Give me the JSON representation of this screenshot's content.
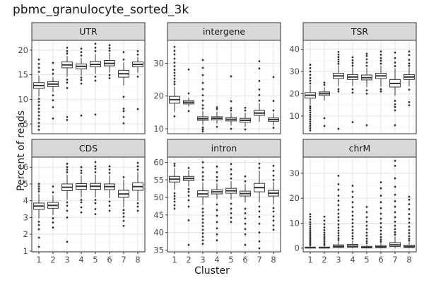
{
  "title": "pbmc_granulocyte_sorted_3k",
  "ylabel": "Percent of reads",
  "xlabel": "Cluster",
  "chart_data": {
    "type": "boxplot",
    "title": "pbmc_granulocyte_sorted_3k",
    "xlabel": "Cluster",
    "ylabel": "Percent of reads",
    "categories": [
      "1",
      "2",
      "3",
      "4",
      "5",
      "6",
      "7",
      "8"
    ],
    "panels": [
      {
        "name": "UTR",
        "ylim": [
          3,
          22
        ],
        "yticks": [
          5,
          10,
          15,
          20
        ],
        "boxes": [
          {
            "q1": 12.2,
            "median": 12.8,
            "q3": 13.4,
            "whisker_low": 10.6,
            "whisker_high": 14.8,
            "outliers": [
              3.8,
              4.5,
              5.2,
              6,
              6.7,
              7.4,
              8.1,
              8.8,
              9.5,
              10.1,
              15.6,
              16.4,
              17.2,
              18.1
            ]
          },
          {
            "q1": 12.6,
            "median": 13.1,
            "q3": 13.6,
            "whisker_low": 11.5,
            "whisker_high": 14.5,
            "outliers": [
              6.1,
              8.4,
              9.8,
              10.8,
              15.2,
              16,
              17.4
            ]
          },
          {
            "q1": 16.4,
            "median": 17.0,
            "q3": 17.6,
            "whisker_low": 14.6,
            "whisker_high": 18.8,
            "outliers": [
              5.8,
              6.4,
              12.3,
              13.4,
              14,
              19.3,
              19.8,
              20.5
            ]
          },
          {
            "q1": 16.2,
            "median": 16.7,
            "q3": 17.2,
            "whisker_low": 14.8,
            "whisker_high": 18.4,
            "outliers": [
              6.7,
              13.2,
              13.9,
              14.4,
              18.9,
              19.6,
              20.3
            ]
          },
          {
            "q1": 16.6,
            "median": 17.1,
            "q3": 17.7,
            "whisker_low": 15.2,
            "whisker_high": 19.2,
            "outliers": [
              6.9,
              13.8,
              14.6,
              19.8,
              20.5,
              21.3
            ]
          },
          {
            "q1": 16.8,
            "median": 17.3,
            "q3": 17.9,
            "whisker_low": 15.4,
            "whisker_high": 19.4,
            "outliers": [
              14.3,
              14.9,
              19.9,
              20.4,
              21
            ]
          },
          {
            "q1": 14.5,
            "median": 15.2,
            "q3": 15.9,
            "whisker_low": 12.8,
            "whisker_high": 17.5,
            "outliers": [
              5.1,
              6.4,
              7.6,
              8.1,
              10.5,
              18.1,
              19.6
            ]
          },
          {
            "q1": 16.6,
            "median": 17.1,
            "q3": 17.6,
            "whisker_low": 15.4,
            "whisker_high": 18.6,
            "outliers": [
              8,
              14.6,
              19.1,
              19.8
            ]
          }
        ]
      },
      {
        "name": "intergene",
        "ylim": [
          8.5,
          37
        ],
        "yticks": [
          10,
          20,
          30
        ],
        "boxes": [
          {
            "q1": 17.8,
            "median": 18.9,
            "q3": 19.9,
            "whisker_low": 15.2,
            "whisker_high": 22.8,
            "outliers": [
              13.8,
              23.6,
              24.4,
              25.3,
              26.2,
              27.1,
              28,
              29.1,
              30.2,
              31.4,
              32.7,
              33.8,
              35
            ]
          },
          {
            "q1": 17.6,
            "median": 18.1,
            "q3": 18.6,
            "whisker_low": 16.8,
            "whisker_high": 19.5,
            "outliers": [
              15.4,
              20.8,
              28.1
            ]
          },
          {
            "q1": 12.6,
            "median": 13.1,
            "q3": 13.7,
            "whisker_low": 11.2,
            "whisker_high": 15.4,
            "outliers": [
              9.2,
              9.8,
              10.4,
              16.2,
              17.2,
              18.6,
              20.2,
              22.1,
              24,
              26.4,
              28.6,
              31
            ]
          },
          {
            "q1": 12.7,
            "median": 13.2,
            "q3": 13.7,
            "whisker_low": 11.5,
            "whisker_high": 15.2,
            "outliers": [
              10.6,
              16,
              16.6
            ]
          },
          {
            "q1": 12.4,
            "median": 12.9,
            "q3": 13.4,
            "whisker_low": 11,
            "whisker_high": 14.9,
            "outliers": [
              10,
              15.6,
              16.3,
              18.4,
              26
            ]
          },
          {
            "q1": 12.0,
            "median": 12.6,
            "q3": 13.2,
            "whisker_low": 10.6,
            "whisker_high": 14.8,
            "outliers": [
              9.8,
              15.6,
              16.4
            ]
          },
          {
            "q1": 14.1,
            "median": 14.8,
            "q3": 15.6,
            "whisker_low": 12.2,
            "whisker_high": 17.8,
            "outliers": [
              18.6,
              20.3,
              22,
              24.6,
              28.4,
              30.6
            ]
          },
          {
            "q1": 12.3,
            "median": 12.8,
            "q3": 13.3,
            "whisker_low": 11,
            "whisker_high": 14.7,
            "outliers": [
              10.3,
              15.6,
              18.5,
              25.8
            ]
          }
        ]
      },
      {
        "name": "TSR",
        "ylim": [
          2,
          44
        ],
        "yticks": [
          10,
          20,
          30,
          40
        ],
        "boxes": [
          {
            "q1": 18.0,
            "median": 19.3,
            "q3": 20.5,
            "whisker_low": 15,
            "whisker_high": 23.8,
            "outliers": [
              3.5,
              4.5,
              5.5,
              6.5,
              7.5,
              8.5,
              9.5,
              10.5,
              11.5,
              12.5,
              13.5,
              14.3,
              24.6,
              25.8,
              27,
              28.5,
              30,
              31.5,
              33
            ]
          },
          {
            "q1": 19.2,
            "median": 20.0,
            "q3": 20.8,
            "whisker_low": 17,
            "whisker_high": 22.8,
            "outliers": [
              5.5,
              9,
              24,
              25
            ]
          },
          {
            "q1": 26.8,
            "median": 28.0,
            "q3": 29.2,
            "whisker_low": 23.4,
            "whisker_high": 32.6,
            "outliers": [
              4.2,
              21,
              22,
              33.4,
              34.4,
              35.4,
              36.5,
              37.6,
              38.8
            ]
          },
          {
            "q1": 26.4,
            "median": 27.5,
            "q3": 28.6,
            "whisker_low": 23.5,
            "whisker_high": 31.8,
            "outliers": [
              7.2,
              20.5,
              22,
              32.6,
              33.8,
              35,
              36.4
            ]
          },
          {
            "q1": 26.2,
            "median": 27.2,
            "q3": 28.4,
            "whisker_low": 23,
            "whisker_high": 31.6,
            "outliers": [
              5.8,
              20,
              21.5,
              32.5,
              34,
              35.5,
              37,
              38
            ]
          },
          {
            "q1": 26.8,
            "median": 28.0,
            "q3": 29.2,
            "whisker_low": 23.2,
            "whisker_high": 32.6,
            "outliers": [
              21,
              22,
              33.5,
              34.8,
              36,
              37.5,
              39
            ]
          },
          {
            "q1": 23.0,
            "median": 24.6,
            "q3": 26.4,
            "whisker_low": 19.2,
            "whisker_high": 31.4,
            "outliers": [
              5.8,
              12.5,
              14,
              15.2,
              16.8,
              32.4,
              34,
              36,
              38.5
            ]
          },
          {
            "q1": 26.4,
            "median": 27.5,
            "q3": 28.6,
            "whisker_low": 23.4,
            "whisker_high": 31.8,
            "outliers": [
              14.8,
              16.2,
              21.8,
              32.5,
              33.6,
              35.2,
              37.4,
              39
            ]
          }
        ]
      },
      {
        "name": "CDS",
        "ylim": [
          0.95,
          6.6
        ],
        "yticks": [
          1,
          2,
          3,
          4,
          5,
          6
        ],
        "boxes": [
          {
            "q1": 3.48,
            "median": 3.68,
            "q3": 3.86,
            "whisker_low": 2.95,
            "whisker_high": 4.4,
            "outliers": [
              1.25,
              1.8,
              2.3,
              2.55,
              2.75,
              4.55,
              4.7,
              4.85,
              5.0
            ]
          },
          {
            "q1": 3.55,
            "median": 3.72,
            "q3": 3.9,
            "whisker_low": 3.15,
            "whisker_high": 4.3,
            "outliers": [
              2.4,
              2.7,
              2.95,
              4.5,
              4.85
            ]
          },
          {
            "q1": 4.6,
            "median": 4.8,
            "q3": 5.0,
            "whisker_low": 4.05,
            "whisker_high": 5.55,
            "outliers": [
              1.55,
              3.0,
              3.4,
              3.7,
              3.9,
              5.7,
              5.85,
              6.0,
              6.2
            ]
          },
          {
            "q1": 4.68,
            "median": 4.86,
            "q3": 5.02,
            "whisker_low": 4.2,
            "whisker_high": 5.5,
            "outliers": [
              3.3,
              3.6,
              3.9,
              4.05,
              5.65,
              5.8,
              6.0
            ]
          },
          {
            "q1": 4.68,
            "median": 4.86,
            "q3": 5.03,
            "whisker_low": 4.2,
            "whisker_high": 5.55,
            "outliers": [
              3.2,
              3.5,
              3.85,
              4.05,
              5.7,
              5.9,
              6.05,
              6.3
            ]
          },
          {
            "q1": 4.66,
            "median": 4.84,
            "q3": 5.0,
            "whisker_low": 4.15,
            "whisker_high": 5.5,
            "outliers": [
              3.4,
              3.7,
              3.95,
              5.65,
              5.85,
              6.05
            ]
          },
          {
            "q1": 4.2,
            "median": 4.4,
            "q3": 4.62,
            "whisker_low": 3.6,
            "whisker_high": 5.25,
            "outliers": [
              2.5,
              2.8,
              3.05,
              3.25,
              3.45,
              5.4
            ]
          },
          {
            "q1": 4.62,
            "median": 4.84,
            "q3": 5.06,
            "whisker_low": 4.0,
            "whisker_high": 5.7,
            "outliers": [
              3.4,
              3.65,
              3.85,
              5.85,
              6.05,
              6.25
            ]
          }
        ]
      },
      {
        "name": "intron",
        "ylim": [
          34.5,
          61.5
        ],
        "yticks": [
          35,
          40,
          45,
          50,
          55,
          60
        ],
        "boxes": [
          {
            "q1": 54.4,
            "median": 55.2,
            "q3": 56.0,
            "whisker_low": 52.2,
            "whisker_high": 58.4,
            "outliers": [
              46.8,
              47.8,
              48.8,
              49.6,
              50.4,
              51.2,
              59,
              59.6
            ]
          },
          {
            "q1": 54.8,
            "median": 55.4,
            "q3": 56.0,
            "whisker_low": 53.2,
            "whisker_high": 57.8,
            "outliers": [
              36.5,
              43.5,
              47.4,
              49.2,
              50.5,
              51.6,
              52.4,
              58.4
            ]
          },
          {
            "q1": 50.2,
            "median": 51.0,
            "q3": 51.9,
            "whisker_low": 47.8,
            "whisker_high": 54.2,
            "outliers": [
              36.8,
              37.8,
              38.8,
              39.8,
              40.8,
              41.8,
              42.8,
              43.8,
              44.8,
              45.8,
              46.8,
              55,
              56,
              57.2,
              58.5,
              60
            ]
          },
          {
            "q1": 51.0,
            "median": 51.6,
            "q3": 52.2,
            "whisker_low": 49.5,
            "whisker_high": 54.0,
            "outliers": [
              37.8,
              39.5,
              41.2,
              43,
              44.8,
              46.4,
              48,
              54.8,
              55.8,
              57.2,
              58.8
            ]
          },
          {
            "q1": 51.2,
            "median": 51.9,
            "q3": 52.6,
            "whisker_low": 49.4,
            "whisker_high": 54.6,
            "outliers": [
              43,
              44.2,
              45.5,
              46.8,
              48.2,
              55.4,
              56.6,
              58,
              59.5
            ]
          },
          {
            "q1": 50.4,
            "median": 51.1,
            "q3": 51.8,
            "whisker_low": 48.6,
            "whisker_high": 53.8,
            "outliers": [
              36.5,
              39.5,
              41,
              42.5,
              44,
              45.5,
              46.8,
              54.6,
              56
            ]
          },
          {
            "q1": 51.6,
            "median": 52.8,
            "q3": 54.0,
            "whisker_low": 48.6,
            "whisker_high": 57.6,
            "outliers": [
              35.5,
              37.5,
              40,
              42.5,
              44.5,
              46,
              47.4,
              58.4,
              59.6
            ]
          },
          {
            "q1": 50.4,
            "median": 51.2,
            "q3": 52.0,
            "whisker_low": 48.0,
            "whisker_high": 54.4,
            "outliers": [
              40.8,
              42,
              43.4,
              44.6,
              46,
              47,
              55,
              56.2,
              57.6,
              59
            ]
          }
        ]
      },
      {
        "name": "chrM",
        "ylim": [
          -1.5,
          36.5
        ],
        "yticks": [
          0,
          10,
          20,
          30
        ],
        "boxes": [
          {
            "q1": 0.05,
            "median": 0.15,
            "q3": 0.4,
            "whisker_low": 0,
            "whisker_high": 0.9,
            "outliers": [
              1.2,
              1.8,
              2.4,
              3,
              3.6,
              4.2,
              4.9,
              5.6,
              6.3,
              7,
              7.8,
              8.6,
              9.5,
              10.4,
              11.5,
              12.6,
              13.6
            ]
          },
          {
            "q1": 0.05,
            "median": 0.15,
            "q3": 0.4,
            "whisker_low": 0,
            "whisker_high": 0.9,
            "outliers": [
              1.3,
              2,
              2.8,
              3.6,
              4.4,
              5.3,
              6.2,
              7.2,
              8.3,
              9.6,
              11,
              12.6
            ]
          },
          {
            "q1": 0.3,
            "median": 0.7,
            "q3": 1.3,
            "whisker_low": 0,
            "whisker_high": 2.6,
            "outliers": [
              3.2,
              4,
              5,
              6,
              7,
              8.2,
              9.5,
              11,
              12.4,
              13.8,
              15.4,
              17.2,
              19,
              21,
              23.4,
              25.6,
              29
            ]
          },
          {
            "q1": 0.4,
            "median": 0.8,
            "q3": 1.5,
            "whisker_low": 0,
            "whisker_high": 3.0,
            "outliers": [
              3.8,
              4.8,
              6,
              7.2,
              8.6,
              10,
              11.5,
              13,
              14.6,
              16.4,
              18.4,
              20.5,
              22.6,
              25
            ]
          },
          {
            "q1": 0.1,
            "median": 0.3,
            "q3": 0.7,
            "whisker_low": 0,
            "whisker_high": 1.4,
            "outliers": [
              2,
              2.8,
              3.8,
              5,
              6.2,
              7.6,
              9,
              10.6,
              12.4,
              14.4,
              16.5
            ]
          },
          {
            "q1": 0.2,
            "median": 0.5,
            "q3": 1.0,
            "whisker_low": 0,
            "whisker_high": 2.0,
            "outliers": [
              2.6,
              3.4,
              4.4,
              5.6,
              7,
              8.4,
              10,
              11.8,
              13.8,
              16,
              18.4,
              21,
              24,
              26.4
            ]
          },
          {
            "q1": 0.6,
            "median": 1.3,
            "q3": 2.2,
            "whisker_low": 0,
            "whisker_high": 4.6,
            "outliers": [
              5.4,
              6.4,
              7.6,
              9,
              10.6,
              12.4,
              14.4,
              16.6,
              18.8,
              21.4,
              24.6,
              28,
              33,
              35
            ]
          },
          {
            "q1": 0.3,
            "median": 0.6,
            "q3": 1.2,
            "whisker_low": 0,
            "whisker_high": 2.4,
            "outliers": [
              3,
              3.8,
              4.8,
              6,
              7.2,
              8.6,
              10.2,
              11.8,
              13.6,
              15.6,
              17.6,
              19.4,
              20.6
            ]
          }
        ]
      }
    ]
  }
}
